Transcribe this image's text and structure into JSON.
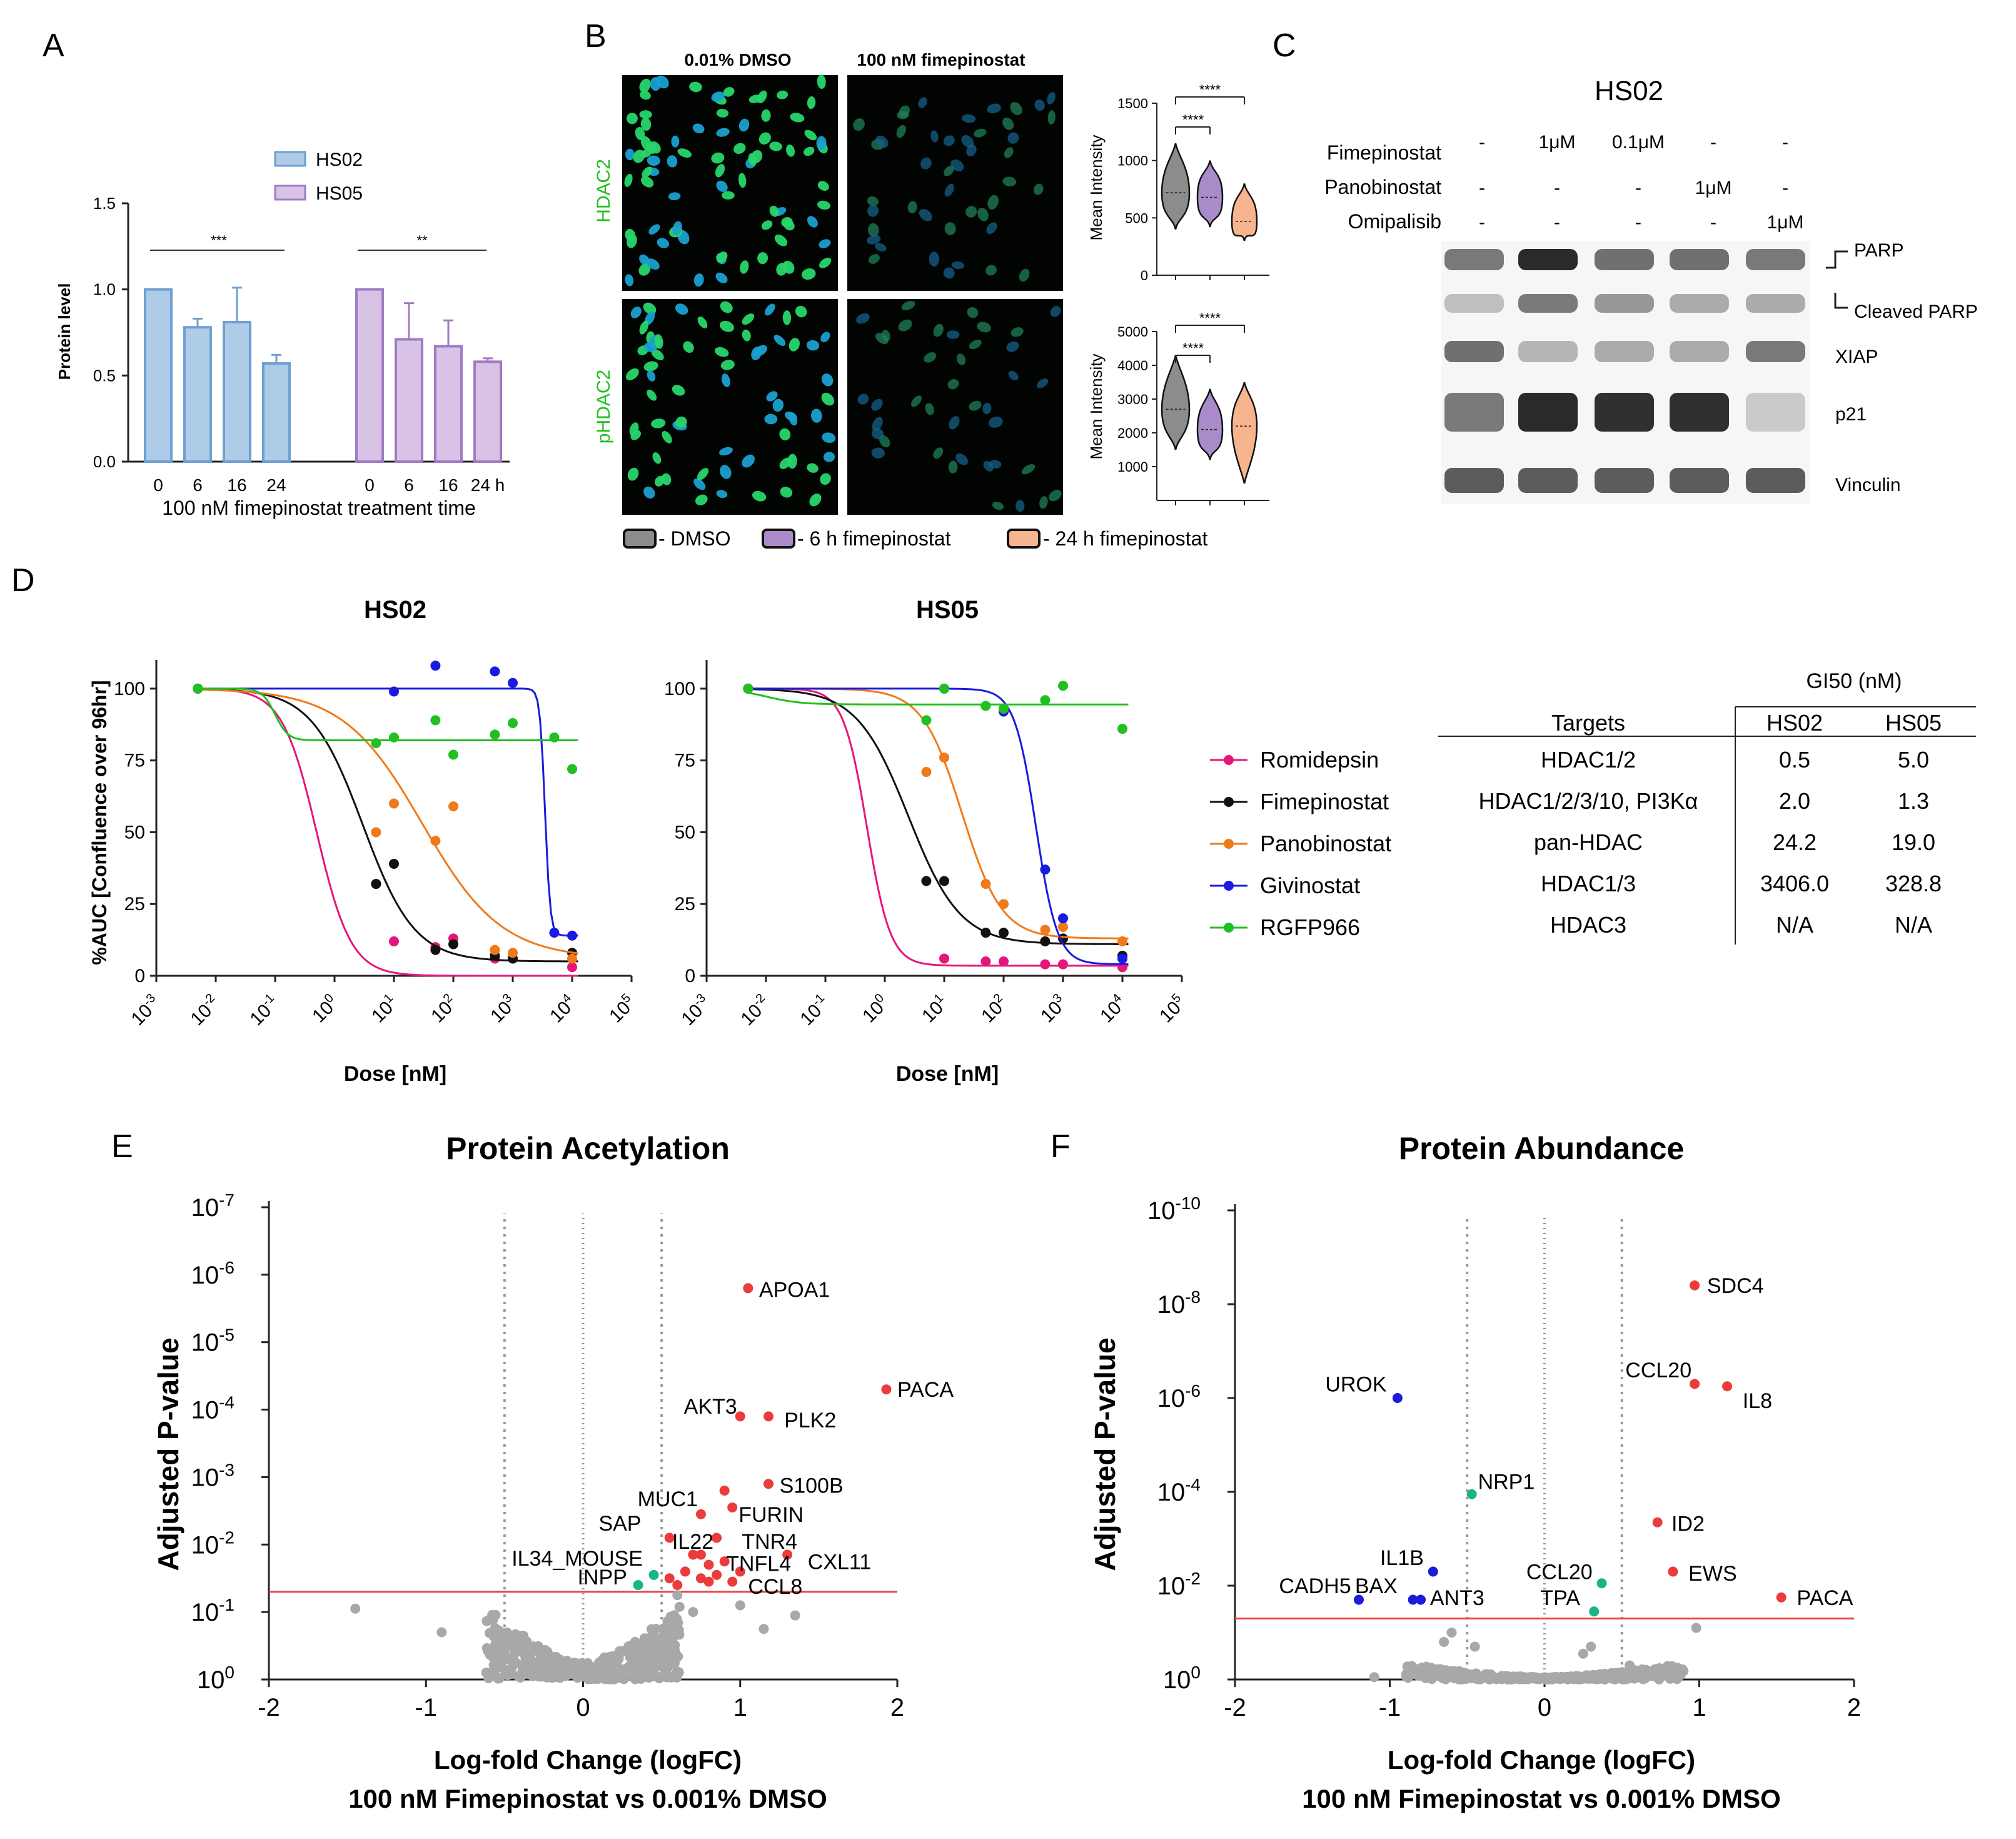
{
  "panels": {
    "A": {
      "letter": "A"
    },
    "B": {
      "letter": "B"
    },
    "C": {
      "letter": "C"
    },
    "D": {
      "letter": "D"
    },
    "E": {
      "letter": "E"
    },
    "F": {
      "letter": "F"
    }
  },
  "colors": {
    "hs02": "#aecbe8",
    "hs02_edge": "#6f9fd2",
    "hs05": "#d8c3e6",
    "hs05_edge": "#a07bc4",
    "romidepsin": "#e5167a",
    "fimepinostat": "#111111",
    "panobinostat": "#f07a1a",
    "givinostat": "#1a1ae0",
    "rgfp966": "#20c020",
    "up": "#ec3b3b",
    "down": "#1b1bd9",
    "mid": "#18b48a",
    "ns": "#a8a8a8",
    "violin_dmso": "#8c8c8c",
    "violin_6h": "#a98bc9",
    "violin_24h": "#f6b58e"
  },
  "panelA": {
    "chart_data": {
      "type": "bar",
      "legend": [
        "HS02",
        "HS05"
      ],
      "ylabel": "Protein level",
      "xlabel": "100 nM fimepinostat treatment time",
      "ylim": [
        0,
        1.5
      ],
      "yticks": [
        "0.0",
        "0.5",
        "1.0",
        "1.5"
      ],
      "series": [
        {
          "name": "HS02",
          "categories": [
            "0",
            "6",
            "16",
            "24"
          ],
          "values": [
            1.0,
            0.78,
            0.81,
            0.57
          ],
          "errors": [
            0,
            0.05,
            0.2,
            0.05
          ]
        },
        {
          "name": "HS05",
          "categories": [
            "0",
            "6",
            "16",
            "24 h"
          ],
          "values": [
            1.0,
            0.71,
            0.67,
            0.58
          ],
          "errors": [
            0,
            0.21,
            0.15,
            0.02
          ]
        }
      ],
      "significance": [
        "***",
        "**"
      ]
    }
  },
  "panelB": {
    "col_titles": [
      "0.01% DMSO",
      "100 nM fimepinostat"
    ],
    "row_labels": [
      "HDAC2",
      "pHDAC2"
    ],
    "violin_top": {
      "ylabel": "Mean Intensity",
      "yticks": [
        "0",
        "500",
        "1000",
        "1500"
      ],
      "ylim": [
        0,
        1500
      ],
      "sig": [
        "****",
        "****"
      ]
    },
    "violin_bottom": {
      "ylabel": "Mean Intensity",
      "yticks": [
        "1000",
        "2000",
        "3000",
        "4000",
        "5000"
      ],
      "ylim": [
        0,
        5000
      ],
      "sig": [
        "****",
        "****"
      ]
    },
    "legend": [
      "- DMSO",
      "- 6 h fimepinostat",
      "- 24 h fimepinostat"
    ]
  },
  "panelC": {
    "title": "HS02",
    "rows": [
      {
        "label": "Fimepinostat",
        "values": [
          "-",
          "1μM",
          "0.1μM",
          "-",
          "-"
        ]
      },
      {
        "label": "Panobinostat",
        "values": [
          "-",
          "-",
          "-",
          "1μM",
          "-"
        ]
      },
      {
        "label": "Omipalisib",
        "values": [
          "-",
          "-",
          "-",
          "-",
          "1μM"
        ]
      }
    ],
    "bands": [
      "PARP",
      "Cleaved PARP",
      "XIAP",
      "p21",
      "Vinculin"
    ]
  },
  "panelD": {
    "chart_data": [
      {
        "type": "scatter",
        "title": "HS02",
        "xlabel": "Dose [nM]",
        "ylabel": "%AUC [Confluence over 96hr]",
        "xscale": "log",
        "ylim": [
          0,
          110
        ],
        "yticks": [
          "0",
          "25",
          "50",
          "75",
          "100"
        ],
        "series": [
          {
            "name": "Romidepsin",
            "x": [
              0.005,
              5,
              10,
              50,
              100,
              500,
              1000,
              10000
            ],
            "y": [
              100,
              32,
              12,
              10,
              13,
              6,
              6,
              3
            ]
          },
          {
            "name": "Fimepinostat",
            "x": [
              0.005,
              5,
              10,
              50,
              100,
              500,
              1000,
              10000
            ],
            "y": [
              100,
              32,
              39,
              9,
              11,
              7,
              6,
              8
            ]
          },
          {
            "name": "Panobinostat",
            "x": [
              0.005,
              5,
              10,
              50,
              100,
              500,
              1000,
              10000
            ],
            "y": [
              100,
              50,
              60,
              47,
              59,
              9,
              8,
              6
            ]
          },
          {
            "name": "Givinostat",
            "x": [
              0.005,
              10,
              50,
              500,
              1000,
              5000,
              10000
            ],
            "y": [
              100,
              99,
              108,
              106,
              102,
              15,
              14
            ]
          },
          {
            "name": "RGFP966",
            "x": [
              0.005,
              5,
              10,
              50,
              100,
              500,
              1000,
              5000,
              10000
            ],
            "y": [
              100,
              81,
              83,
              89,
              77,
              84,
              88,
              83,
              72
            ]
          }
        ]
      },
      {
        "type": "scatter",
        "title": "HS05",
        "xlabel": "Dose [nM]",
        "xscale": "log",
        "ylim": [
          0,
          110
        ],
        "yticks": [
          "0",
          "25",
          "50",
          "75",
          "100"
        ],
        "series": [
          {
            "name": "Romidepsin",
            "x": [
              0.005,
              10,
              50,
              100,
              500,
              1000,
              10000
            ],
            "y": [
              100,
              6,
              5,
              5,
              4,
              4,
              3
            ]
          },
          {
            "name": "Fimepinostat",
            "x": [
              0.005,
              5,
              10,
              50,
              100,
              500,
              1000,
              10000
            ],
            "y": [
              100,
              33,
              33,
              15,
              15,
              12,
              13,
              7
            ]
          },
          {
            "name": "Panobinostat",
            "x": [
              0.005,
              5,
              10,
              50,
              100,
              500,
              1000,
              10000
            ],
            "y": [
              100,
              71,
              76,
              32,
              25,
              16,
              17,
              12
            ]
          },
          {
            "name": "Givinostat",
            "x": [
              0.005,
              10,
              100,
              500,
              1000,
              10000
            ],
            "y": [
              100,
              100,
              92,
              37,
              20,
              6
            ]
          },
          {
            "name": "RGFP966",
            "x": [
              0.005,
              5,
              10,
              50,
              100,
              500,
              1000,
              10000
            ],
            "y": [
              100,
              89,
              100,
              94,
              93,
              96,
              101,
              86
            ]
          }
        ]
      }
    ],
    "xticks": [
      "10",
      "10",
      "10",
      "10",
      "10",
      "10",
      "10",
      "10",
      "10"
    ],
    "xtick_exps": [
      "-3",
      "-2",
      "-1",
      "0",
      "1",
      "2",
      "3",
      "4",
      "5"
    ],
    "legend": [
      "Romidepsin",
      "Fimepinostat",
      "Panobinostat",
      "Givinostat",
      "RGFP966"
    ],
    "table": {
      "group_header": "GI50 (nM)",
      "headers": [
        "Targets",
        "HS02",
        "HS05"
      ],
      "rows": [
        [
          "HDAC1/2",
          "0.5",
          "5.0"
        ],
        [
          "HDAC1/2/3/10, PI3Kα",
          "2.0",
          "1.3"
        ],
        [
          "pan-HDAC",
          "24.2",
          "19.0"
        ],
        [
          "HDAC1/3",
          "3406.0",
          "328.8"
        ],
        [
          "HDAC3",
          "N/A",
          "N/A"
        ]
      ]
    }
  },
  "panelE": {
    "chart_data": {
      "type": "scatter",
      "title": "Protein Acetylation",
      "xlabel": "Log-fold Change (logFC)",
      "xlabel2": "100 nM Fimepinostat vs 0.001% DMSO",
      "ylabel": "Adjusted P-value",
      "xlim": [
        -2,
        2
      ],
      "xticks": [
        "-2",
        "-1",
        "0",
        "1",
        "2"
      ],
      "yticks_base": "10",
      "yticks_exp": [
        "0",
        "-1",
        "-2",
        "-3",
        "-4",
        "-5",
        "-6",
        "-7"
      ],
      "labeled_points": [
        {
          "label": "APOA1",
          "x": 1.05,
          "y": 5.8,
          "group": "up"
        },
        {
          "label": "PACA",
          "x": 1.93,
          "y": 4.3,
          "group": "up"
        },
        {
          "label": "AKT3",
          "x": 1.0,
          "y": 3.9,
          "group": "up"
        },
        {
          "label": "PLK2",
          "x": 1.18,
          "y": 3.9,
          "group": "up"
        },
        {
          "label": "S100B",
          "x": 1.18,
          "y": 2.9,
          "group": "up"
        },
        {
          "label": "MUC1",
          "x": 0.9,
          "y": 2.8,
          "group": "up"
        },
        {
          "label": "FURIN",
          "x": 0.95,
          "y": 2.55,
          "group": "up"
        },
        {
          "label": "SAP",
          "x": 0.75,
          "y": 2.45,
          "group": "up"
        },
        {
          "label": "TNR4",
          "x": 0.85,
          "y": 2.1,
          "group": "up"
        },
        {
          "label": "IL22",
          "x": 0.55,
          "y": 2.1,
          "group": "up"
        },
        {
          "label": "TNFL4",
          "x": 0.75,
          "y": 1.85,
          "group": "up"
        },
        {
          "label": "CXL11",
          "x": 1.3,
          "y": 1.85,
          "group": "up"
        },
        {
          "label": "IL34_MOUSE",
          "x": 0.45,
          "y": 1.55,
          "group": "mid"
        },
        {
          "label": "INPP",
          "x": 0.35,
          "y": 1.4,
          "group": "mid"
        },
        {
          "label": "CCL8",
          "x": 0.8,
          "y": 1.45,
          "group": "up"
        }
      ]
    }
  },
  "panelF": {
    "chart_data": {
      "type": "scatter",
      "title": "Protein Abundance",
      "xlabel": "Log-fold Change (logFC)",
      "xlabel2": "100 nM Fimepinostat vs 0.001% DMSO",
      "ylabel": "Adjusted P-value",
      "xlim": [
        -2,
        2
      ],
      "xticks": [
        "-2",
        "-1",
        "0",
        "1",
        "2"
      ],
      "yticks_base": "10",
      "yticks_exp": [
        "0",
        "-2",
        "-4",
        "-6",
        "-8",
        "-10"
      ],
      "labeled_points": [
        {
          "label": "SDC4",
          "x": 0.97,
          "y": 8.4,
          "group": "up"
        },
        {
          "label": "CCL20",
          "x": 0.97,
          "y": 6.3,
          "group": "up"
        },
        {
          "label": "IL8",
          "x": 1.18,
          "y": 6.25,
          "group": "up"
        },
        {
          "label": "UROK",
          "x": -0.95,
          "y": 6.0,
          "group": "down"
        },
        {
          "label": "NRP1",
          "x": -0.47,
          "y": 3.95,
          "group": "mid"
        },
        {
          "label": "ID2",
          "x": 0.73,
          "y": 3.35,
          "group": "up"
        },
        {
          "label": "EWS",
          "x": 0.83,
          "y": 2.3,
          "group": "up"
        },
        {
          "label": "PACA",
          "x": 1.53,
          "y": 1.75,
          "group": "up"
        },
        {
          "label": "IL1B",
          "x": -0.72,
          "y": 2.3,
          "group": "down"
        },
        {
          "label": "CCL20",
          "x": 0.37,
          "y": 2.05,
          "group": "mid"
        },
        {
          "label": "CADH5",
          "x": -1.2,
          "y": 1.7,
          "group": "down"
        },
        {
          "label": "BAX",
          "x": -0.85,
          "y": 1.7,
          "group": "down"
        },
        {
          "label": "ANT3",
          "x": -0.8,
          "y": 1.7,
          "group": "down"
        },
        {
          "label": "TPA",
          "x": 0.32,
          "y": 1.45,
          "group": "mid"
        }
      ]
    }
  }
}
